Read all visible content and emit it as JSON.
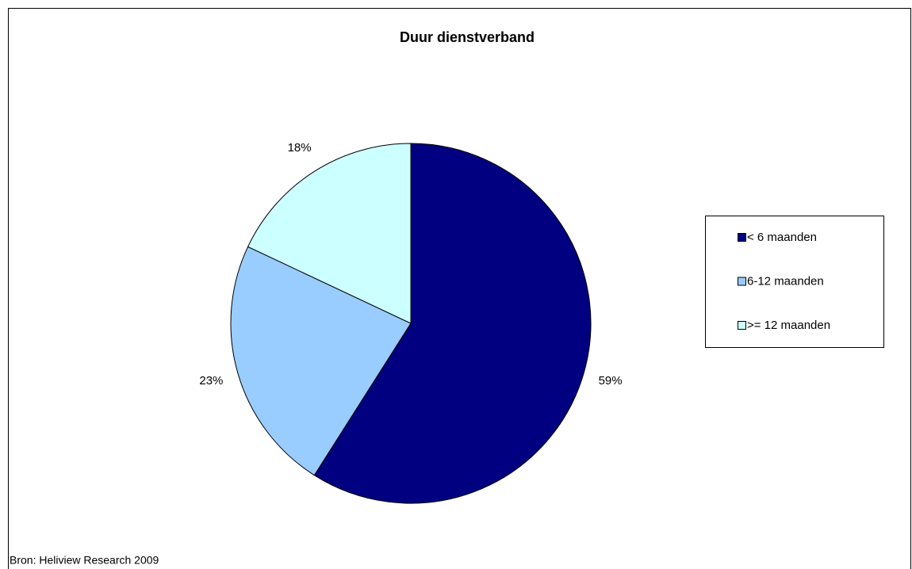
{
  "chart_data": {
    "type": "pie",
    "title": "Duur dienstverband",
    "categories": [
      "< 6 maanden",
      "6-12 maanden",
      ">= 12 maanden"
    ],
    "values": [
      59,
      23,
      18
    ],
    "value_labels": [
      "59%",
      "23%",
      "18%"
    ],
    "colors": [
      "#000080",
      "#99ccff",
      "#ccffff"
    ],
    "legend": "right",
    "source": "Bron: Heliview Research 2009"
  }
}
